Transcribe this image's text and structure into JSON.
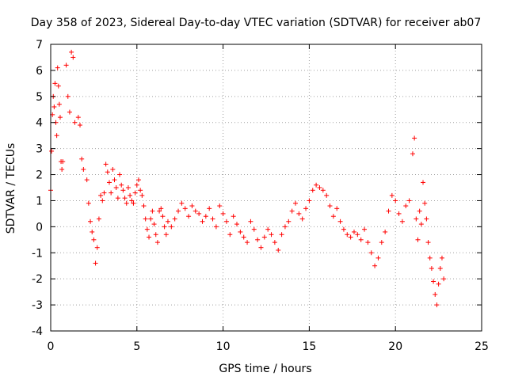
{
  "chart_data": {
    "type": "scatter",
    "title": "Day 358 of 2023, Sidereal Day-to-day VTEC variation (SDTVAR) for receiver ab07",
    "xlabel": "GPS time / hours",
    "ylabel": "SDTVAR / TECUs",
    "xlim": [
      0,
      25
    ],
    "ylim": [
      -4,
      7
    ],
    "xticks": [
      0,
      5,
      10,
      15,
      20,
      25
    ],
    "yticks": [
      -4,
      -3,
      -2,
      -1,
      0,
      1,
      2,
      3,
      4,
      5,
      6,
      7
    ],
    "grid": true,
    "marker": "+",
    "series_color": "#ff0000",
    "series": [
      {
        "name": "SDTVAR",
        "points": [
          [
            0.0,
            1.4
          ],
          [
            0.05,
            2.9
          ],
          [
            0.1,
            4.3
          ],
          [
            0.15,
            5.0
          ],
          [
            0.2,
            4.6
          ],
          [
            0.25,
            5.5
          ],
          [
            0.3,
            4.0
          ],
          [
            0.35,
            3.5
          ],
          [
            0.4,
            6.1
          ],
          [
            0.45,
            5.4
          ],
          [
            0.5,
            4.7
          ],
          [
            0.55,
            4.2
          ],
          [
            0.6,
            2.5
          ],
          [
            0.65,
            2.2
          ],
          [
            0.7,
            2.5
          ],
          [
            0.9,
            6.2
          ],
          [
            1.0,
            5.0
          ],
          [
            1.1,
            4.4
          ],
          [
            1.2,
            6.7
          ],
          [
            1.3,
            6.5
          ],
          [
            1.4,
            4.0
          ],
          [
            1.6,
            4.2
          ],
          [
            1.7,
            3.9
          ],
          [
            1.8,
            2.6
          ],
          [
            1.9,
            2.2
          ],
          [
            2.1,
            1.8
          ],
          [
            2.2,
            0.9
          ],
          [
            2.3,
            0.2
          ],
          [
            2.4,
            -0.2
          ],
          [
            2.5,
            -0.5
          ],
          [
            2.6,
            -1.4
          ],
          [
            2.7,
            -0.8
          ],
          [
            2.8,
            0.3
          ],
          [
            2.9,
            1.2
          ],
          [
            3.0,
            1.0
          ],
          [
            3.1,
            1.3
          ],
          [
            3.2,
            2.4
          ],
          [
            3.3,
            2.1
          ],
          [
            3.4,
            1.7
          ],
          [
            3.5,
            1.3
          ],
          [
            3.6,
            2.2
          ],
          [
            3.7,
            1.8
          ],
          [
            3.8,
            1.5
          ],
          [
            3.9,
            1.1
          ],
          [
            4.0,
            2.0
          ],
          [
            4.1,
            1.6
          ],
          [
            4.2,
            1.4
          ],
          [
            4.3,
            1.1
          ],
          [
            4.4,
            0.9
          ],
          [
            4.5,
            1.5
          ],
          [
            4.6,
            1.2
          ],
          [
            4.7,
            1.0
          ],
          [
            4.8,
            0.9
          ],
          [
            4.9,
            1.3
          ],
          [
            5.0,
            1.6
          ],
          [
            5.1,
            1.8
          ],
          [
            5.2,
            1.4
          ],
          [
            5.3,
            1.2
          ],
          [
            5.4,
            0.8
          ],
          [
            5.5,
            0.3
          ],
          [
            5.6,
            -0.1
          ],
          [
            5.7,
            -0.4
          ],
          [
            5.8,
            0.3
          ],
          [
            5.9,
            0.6
          ],
          [
            6.0,
            0.1
          ],
          [
            6.1,
            -0.3
          ],
          [
            6.2,
            -0.6
          ],
          [
            6.3,
            0.6
          ],
          [
            6.4,
            0.7
          ],
          [
            6.5,
            0.4
          ],
          [
            6.6,
            0.0
          ],
          [
            6.7,
            -0.3
          ],
          [
            6.8,
            0.2
          ],
          [
            7.0,
            0.0
          ],
          [
            7.2,
            0.3
          ],
          [
            7.4,
            0.6
          ],
          [
            7.6,
            0.9
          ],
          [
            7.8,
            0.7
          ],
          [
            8.0,
            0.4
          ],
          [
            8.2,
            0.8
          ],
          [
            8.4,
            0.6
          ],
          [
            8.6,
            0.5
          ],
          [
            8.8,
            0.2
          ],
          [
            9.0,
            0.4
          ],
          [
            9.2,
            0.7
          ],
          [
            9.4,
            0.3
          ],
          [
            9.6,
            0.0
          ],
          [
            9.8,
            0.8
          ],
          [
            10.0,
            0.5
          ],
          [
            10.2,
            0.2
          ],
          [
            10.4,
            -0.3
          ],
          [
            10.6,
            0.4
          ],
          [
            10.8,
            0.1
          ],
          [
            11.0,
            -0.2
          ],
          [
            11.2,
            -0.4
          ],
          [
            11.4,
            -0.6
          ],
          [
            11.6,
            0.2
          ],
          [
            11.8,
            -0.1
          ],
          [
            12.0,
            -0.5
          ],
          [
            12.2,
            -0.8
          ],
          [
            12.4,
            -0.4
          ],
          [
            12.6,
            -0.1
          ],
          [
            12.8,
            -0.3
          ],
          [
            13.0,
            -0.6
          ],
          [
            13.2,
            -0.9
          ],
          [
            13.4,
            -0.3
          ],
          [
            13.6,
            0.0
          ],
          [
            13.8,
            0.2
          ],
          [
            14.0,
            0.6
          ],
          [
            14.2,
            0.9
          ],
          [
            14.4,
            0.5
          ],
          [
            14.6,
            0.3
          ],
          [
            14.8,
            0.7
          ],
          [
            15.0,
            1.0
          ],
          [
            15.2,
            1.4
          ],
          [
            15.4,
            1.6
          ],
          [
            15.6,
            1.5
          ],
          [
            15.8,
            1.4
          ],
          [
            16.0,
            1.2
          ],
          [
            16.2,
            0.8
          ],
          [
            16.4,
            0.4
          ],
          [
            16.6,
            0.7
          ],
          [
            16.8,
            0.2
          ],
          [
            17.0,
            -0.1
          ],
          [
            17.2,
            -0.3
          ],
          [
            17.4,
            -0.4
          ],
          [
            17.6,
            -0.2
          ],
          [
            17.8,
            -0.3
          ],
          [
            18.0,
            -0.5
          ],
          [
            18.2,
            -0.1
          ],
          [
            18.4,
            -0.6
          ],
          [
            18.6,
            -1.0
          ],
          [
            18.8,
            -1.5
          ],
          [
            19.0,
            -1.2
          ],
          [
            19.2,
            -0.6
          ],
          [
            19.4,
            -0.2
          ],
          [
            19.6,
            0.6
          ],
          [
            19.8,
            1.2
          ],
          [
            20.0,
            1.0
          ],
          [
            20.2,
            0.5
          ],
          [
            20.4,
            0.2
          ],
          [
            20.6,
            0.8
          ],
          [
            20.8,
            1.0
          ],
          [
            21.0,
            2.8
          ],
          [
            21.1,
            3.4
          ],
          [
            21.2,
            0.3
          ],
          [
            21.3,
            -0.5
          ],
          [
            21.4,
            0.6
          ],
          [
            21.5,
            0.1
          ],
          [
            21.6,
            1.7
          ],
          [
            21.7,
            0.9
          ],
          [
            21.8,
            0.3
          ],
          [
            21.9,
            -0.6
          ],
          [
            22.0,
            -1.2
          ],
          [
            22.1,
            -1.6
          ],
          [
            22.2,
            -2.1
          ],
          [
            22.3,
            -2.6
          ],
          [
            22.4,
            -3.0
          ],
          [
            22.5,
            -2.2
          ],
          [
            22.6,
            -1.6
          ],
          [
            22.7,
            -1.2
          ],
          [
            22.8,
            -2.0
          ]
        ]
      }
    ]
  }
}
